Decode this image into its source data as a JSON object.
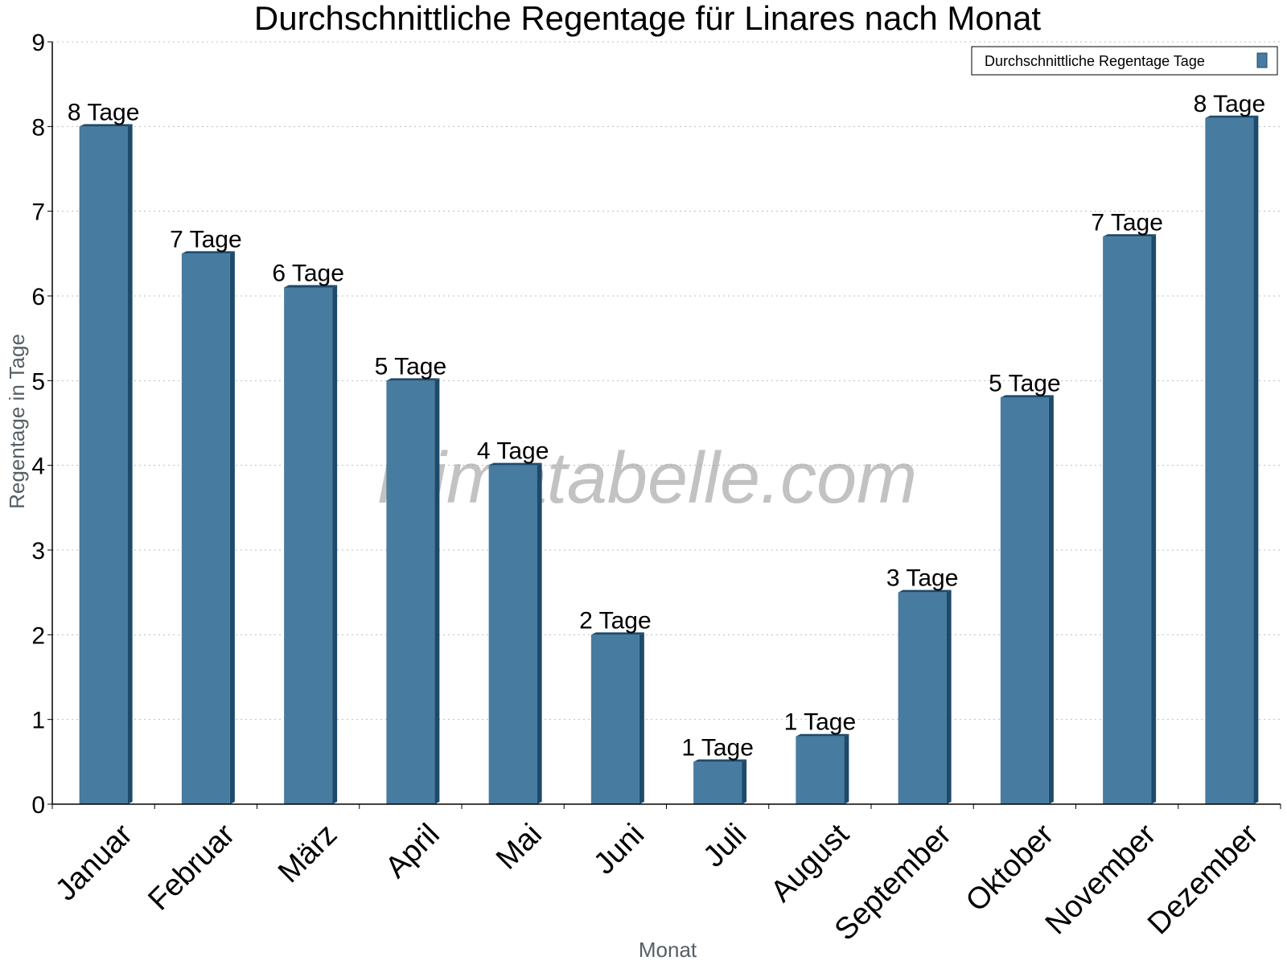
{
  "chart_data": {
    "type": "bar",
    "title": "Durchschnittliche Regentage für Linares nach Monat",
    "xlabel": "Monat",
    "ylabel": "Regentage in Tage",
    "ylim": [
      0,
      9
    ],
    "yticks": [
      "0",
      "1",
      "2",
      "3",
      "4",
      "5",
      "6",
      "7",
      "8",
      "9"
    ],
    "grid": true,
    "legend_position": "top-right",
    "categories": [
      "Januar",
      "Februar",
      "März",
      "April",
      "Mai",
      "Juni",
      "Juli",
      "August",
      "September",
      "Oktober",
      "November",
      "Dezember"
    ],
    "series": [
      {
        "name": "Durchschnittliche Regentage Tage",
        "color": "#477ba0",
        "values": [
          8.0,
          6.5,
          6.1,
          5.0,
          4.0,
          2.0,
          0.5,
          0.8,
          2.5,
          4.8,
          6.7,
          8.1
        ],
        "labels": [
          "8 Tage",
          "7 Tage",
          "6 Tage",
          "5 Tage",
          "4 Tage",
          "2 Tage",
          "1 Tage",
          "1 Tage",
          "3 Tage",
          "5 Tage",
          "7 Tage",
          "8 Tage"
        ]
      }
    ],
    "watermark": "klimatabelle.com"
  }
}
